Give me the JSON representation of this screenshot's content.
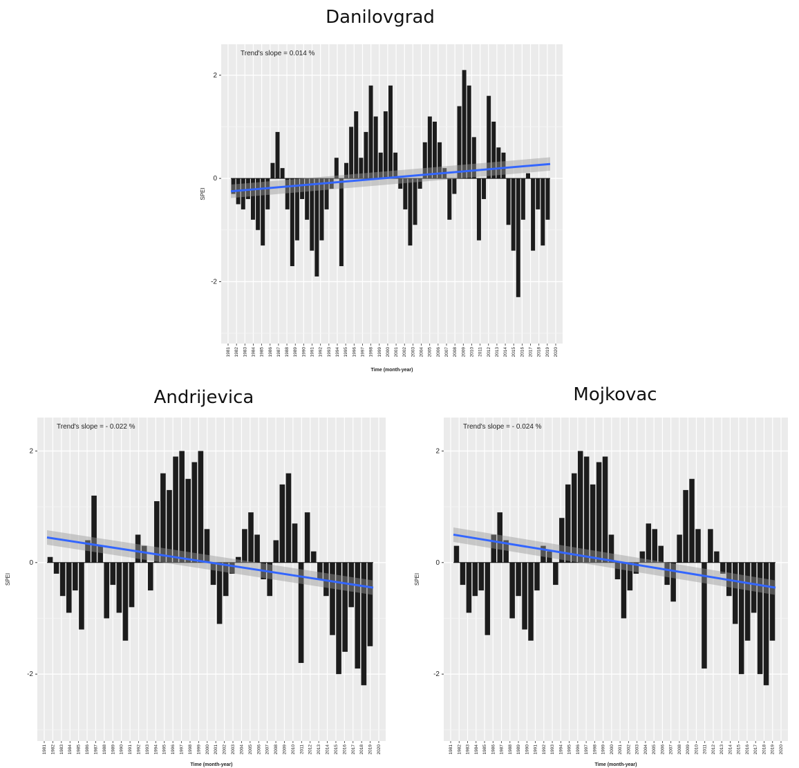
{
  "chart_data": [
    {
      "type": "bar",
      "title": "Danilovgrad",
      "annotation": "Trend's slope = 0.014 %",
      "xlabel": "Time (month-year)",
      "ylabel": "SPEI",
      "ylim": [
        -3.2,
        2.6
      ],
      "yticks": [
        -2,
        0,
        2
      ],
      "x_start_year": 1981,
      "x_end_year": 2020,
      "tick_years": [
        "1981",
        "1982",
        "1983",
        "1984",
        "1985",
        "1986",
        "1987",
        "1988",
        "1989",
        "1990",
        "1991",
        "1992",
        "1993",
        "1994",
        "1995",
        "1996",
        "1997",
        "1998",
        "1999",
        "2000",
        "2001",
        "2002",
        "2003",
        "2004",
        "2005",
        "2006",
        "2007",
        "2008",
        "2009",
        "2010",
        "2011",
        "2012",
        "2013",
        "2014",
        "2015",
        "2016",
        "2017",
        "2018",
        "2019",
        "2020"
      ],
      "grid": true,
      "trend": {
        "start": -0.25,
        "end": 0.28,
        "color": "#3366ff"
      },
      "series": [
        {
          "values": [
            -0.3,
            -0.5,
            -0.6,
            -0.4,
            -0.8,
            -1.0,
            -1.3,
            -0.6,
            0.3,
            0.9,
            0.2,
            -0.6,
            -1.7,
            -1.2,
            -0.4,
            -0.8,
            -1.4,
            -1.9,
            -1.2,
            -0.6,
            -0.2,
            0.4,
            -1.7,
            0.3,
            1.0,
            1.3,
            0.4,
            0.9,
            1.8,
            1.2,
            0.5,
            1.3,
            1.8,
            0.5,
            -0.2,
            -0.6,
            -1.3,
            -0.9,
            -0.2,
            0.7,
            1.2,
            1.1,
            0.7,
            0.2,
            -0.8,
            -0.3,
            1.4,
            2.1,
            1.8,
            0.8,
            -1.2,
            -0.4,
            1.6,
            1.1,
            0.6,
            0.5,
            -0.9,
            -1.4,
            -2.3,
            -0.8,
            0.1,
            -1.4,
            -0.6,
            -1.3,
            -0.8
          ]
        }
      ]
    },
    {
      "type": "bar",
      "title": "Andrijevica",
      "annotation": "Trend's slope = - 0.022 %",
      "xlabel": "Time (month-year)",
      "ylabel": "SPEI",
      "ylim": [
        -3.2,
        2.6
      ],
      "yticks": [
        -2,
        0,
        2
      ],
      "x_start_year": 1981,
      "x_end_year": 2020,
      "tick_years": [
        "1981",
        "1982",
        "1983",
        "1984",
        "1985",
        "1986",
        "1987",
        "1988",
        "1989",
        "1990",
        "1991",
        "1992",
        "1993",
        "1994",
        "1995",
        "1996",
        "1997",
        "1998",
        "1999",
        "2000",
        "2001",
        "2002",
        "2003",
        "2004",
        "2005",
        "2006",
        "2007",
        "2008",
        "2009",
        "2010",
        "2011",
        "2012",
        "2013",
        "2014",
        "2015",
        "2016",
        "2017",
        "2018",
        "2019",
        "2020"
      ],
      "grid": true,
      "trend": {
        "start": 0.45,
        "end": -0.45,
        "color": "#3366ff"
      },
      "series": [
        {
          "values": [
            0.1,
            -0.2,
            -0.6,
            -0.9,
            -0.5,
            -1.2,
            0.4,
            1.2,
            0.3,
            -1.0,
            -0.4,
            -0.9,
            -1.4,
            -0.8,
            0.5,
            0.3,
            -0.5,
            1.1,
            1.6,
            1.3,
            1.9,
            2.0,
            1.5,
            1.8,
            2.0,
            0.6,
            -0.4,
            -1.1,
            -0.6,
            -0.2,
            0.1,
            0.6,
            0.9,
            0.5,
            -0.3,
            -0.6,
            0.4,
            1.4,
            1.6,
            0.7,
            -1.8,
            0.9,
            0.2,
            -0.3,
            -0.6,
            -1.3,
            -2.0,
            -1.6,
            -0.8,
            -1.9,
            -2.2,
            -1.5
          ]
        }
      ]
    },
    {
      "type": "bar",
      "title": "Mojkovac",
      "annotation": "Trend's slope = - 0.024 %",
      "xlabel": "Time (month-year)",
      "ylabel": "SPEI",
      "ylim": [
        -3.2,
        2.6
      ],
      "yticks": [
        -2,
        0,
        2
      ],
      "x_start_year": 1981,
      "x_end_year": 2020,
      "tick_years": [
        "1981",
        "1982",
        "1983",
        "1984",
        "1985",
        "1986",
        "1987",
        "1988",
        "1989",
        "1990",
        "1991",
        "1992",
        "1993",
        "1994",
        "1995",
        "1996",
        "1997",
        "1998",
        "1999",
        "2000",
        "2001",
        "2002",
        "2003",
        "2004",
        "2005",
        "2006",
        "2007",
        "2008",
        "2009",
        "2010",
        "2011",
        "2012",
        "2013",
        "2014",
        "2015",
        "2016",
        "2017",
        "2018",
        "2019",
        "2020"
      ],
      "grid": true,
      "trend": {
        "start": 0.5,
        "end": -0.45,
        "color": "#3366ff"
      },
      "series": [
        {
          "values": [
            0.3,
            -0.4,
            -0.9,
            -0.6,
            -0.5,
            -1.3,
            0.5,
            0.9,
            0.4,
            -1.0,
            -0.6,
            -1.2,
            -1.4,
            -0.5,
            0.3,
            0.2,
            -0.4,
            0.8,
            1.4,
            1.6,
            2.0,
            1.9,
            1.4,
            1.8,
            1.9,
            0.5,
            -0.3,
            -1.0,
            -0.5,
            -0.2,
            0.2,
            0.7,
            0.6,
            0.3,
            -0.4,
            -0.7,
            0.5,
            1.3,
            1.5,
            0.6,
            -1.9,
            0.6,
            0.2,
            -0.2,
            -0.6,
            -1.1,
            -2.0,
            -1.4,
            -0.9,
            -2.0,
            -2.2,
            -1.4
          ]
        }
      ]
    }
  ]
}
